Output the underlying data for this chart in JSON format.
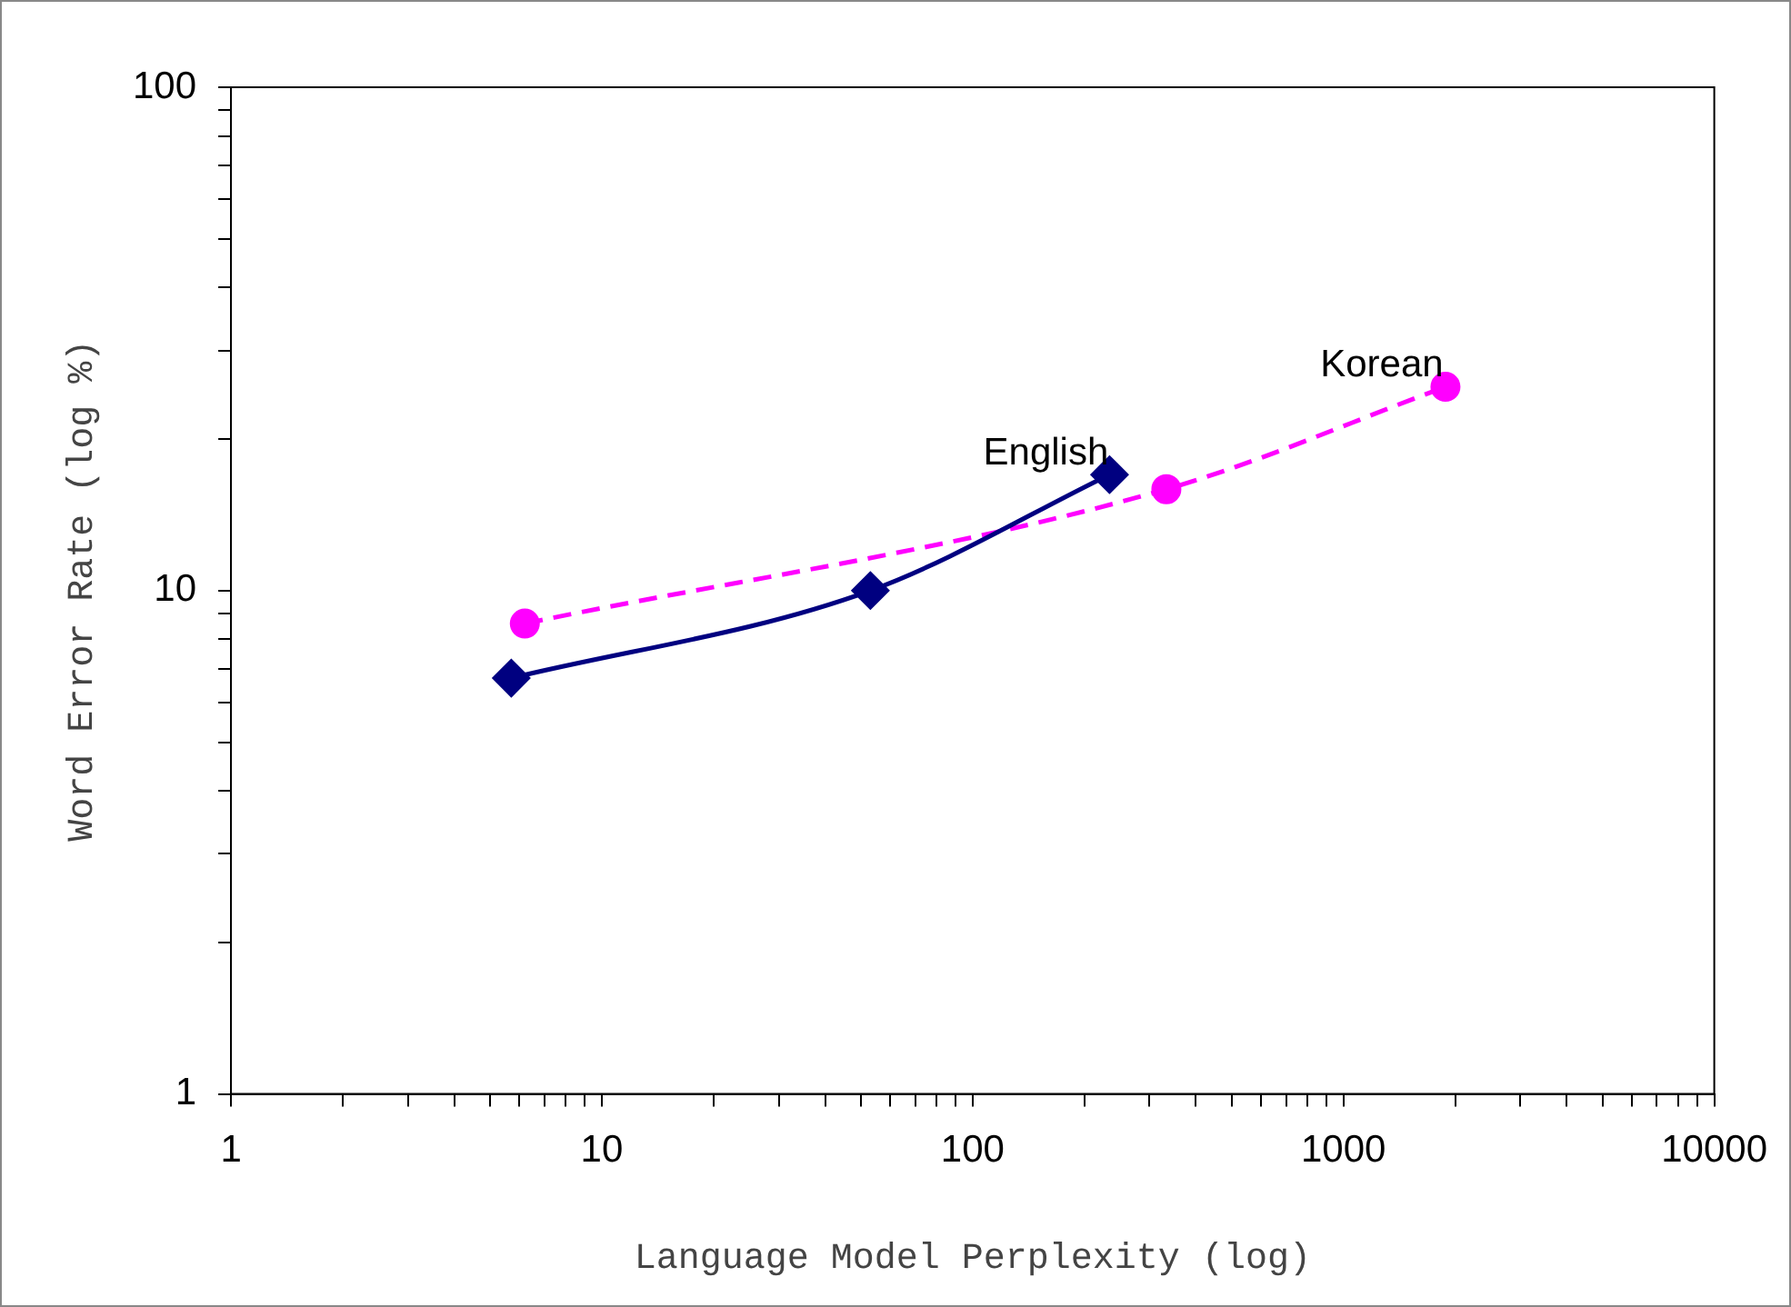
{
  "chart_data": {
    "type": "line",
    "xlabel": "Language Model Perplexity (log)",
    "ylabel": "Word Error Rate (log %)",
    "log": "xy",
    "grid": false,
    "legend": false,
    "xlim": [
      1,
      10000
    ],
    "ylim": [
      1,
      100
    ],
    "xticks": [
      1,
      {
        "value": 2,
        "label": null
      },
      {
        "value": 3,
        "label": null
      },
      {
        "value": 4,
        "label": null
      },
      {
        "value": 5,
        "label": null
      },
      {
        "value": 6,
        "label": null
      },
      {
        "value": 7,
        "label": null
      },
      {
        "value": 8,
        "label": null
      },
      {
        "value": 9,
        "label": null
      },
      10,
      {
        "value": 20,
        "label": null
      },
      {
        "value": 30,
        "label": null
      },
      {
        "value": 40,
        "label": null
      },
      {
        "value": 50,
        "label": null
      },
      {
        "value": 60,
        "label": null
      },
      {
        "value": 70,
        "label": null
      },
      {
        "value": 80,
        "label": null
      },
      {
        "value": 90,
        "label": null
      },
      100,
      {
        "value": 200,
        "label": null
      },
      {
        "value": 300,
        "label": null
      },
      {
        "value": 400,
        "label": null
      },
      {
        "value": 500,
        "label": null
      },
      {
        "value": 600,
        "label": null
      },
      {
        "value": 700,
        "label": null
      },
      {
        "value": 800,
        "label": null
      },
      {
        "value": 900,
        "label": null
      },
      1000,
      {
        "value": 2000,
        "label": null
      },
      {
        "value": 3000,
        "label": null
      },
      {
        "value": 4000,
        "label": null
      },
      {
        "value": 5000,
        "label": null
      },
      {
        "value": 6000,
        "label": null
      },
      {
        "value": 7000,
        "label": null
      },
      {
        "value": 8000,
        "label": null
      },
      {
        "value": 9000,
        "label": null
      },
      10000
    ],
    "yticks": [
      1,
      {
        "value": 2,
        "label": null
      },
      {
        "value": 3,
        "label": null
      },
      {
        "value": 4,
        "label": null
      },
      {
        "value": 5,
        "label": null
      },
      {
        "value": 6,
        "label": null
      },
      {
        "value": 7,
        "label": null
      },
      {
        "value": 8,
        "label": null
      },
      {
        "value": 9,
        "label": null
      },
      10,
      {
        "value": 20,
        "label": null
      },
      {
        "value": 30,
        "label": null
      },
      {
        "value": 40,
        "label": null
      },
      {
        "value": 50,
        "label": null
      },
      {
        "value": 60,
        "label": null
      },
      {
        "value": 70,
        "label": null
      },
      {
        "value": 80,
        "label": null
      },
      {
        "value": 90,
        "label": null
      },
      100
    ],
    "series": [
      {
        "name": "English",
        "color": "#000080",
        "marker": "diamond",
        "line_style": "solid",
        "x": [
          5.7,
          53,
          234
        ],
        "values": [
          6.7,
          10,
          17
        ]
      },
      {
        "name": "Korean",
        "color": "#ff00ff",
        "marker": "circle",
        "line_style": "dashed",
        "x": [
          6.2,
          333,
          1884
        ],
        "values": [
          8.6,
          15.9,
          25.4
        ]
      }
    ]
  }
}
